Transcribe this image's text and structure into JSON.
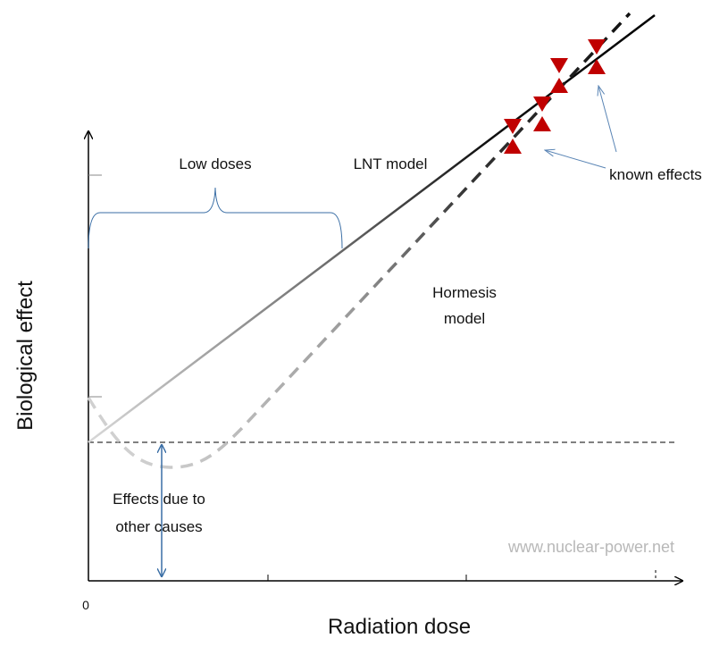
{
  "diagram": {
    "low_doses": "Low doses",
    "lnt_model": "LNT model",
    "known_effects": "known effects",
    "hormesis_model": [
      "Hormesis",
      "model"
    ],
    "y_axis_title": "Biological effect",
    "other_causes": [
      "Effects due to",
      "other causes"
    ],
    "watermark": "www.nuclear-power.net",
    "origin": "0",
    "x_axis_title": "Radiation dose"
  }
}
